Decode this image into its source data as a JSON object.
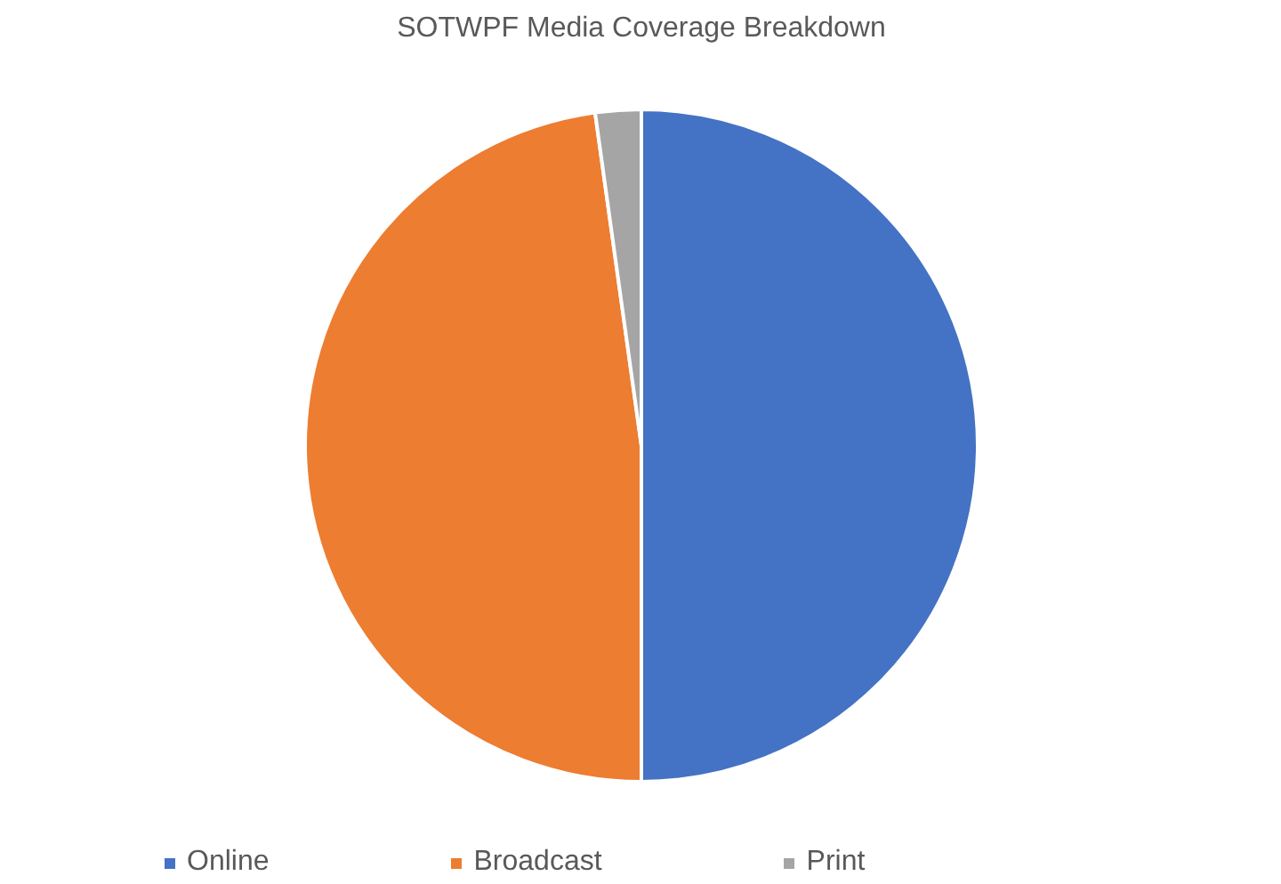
{
  "chart_data": {
    "type": "pie",
    "title": "SOTWPF Media Coverage Breakdown",
    "categories": [
      "Online",
      "Broadcast",
      "Print"
    ],
    "values": [
      50,
      47.8,
      2.2
    ],
    "colors": [
      "#4472c4",
      "#ed7d31",
      "#a5a5a5"
    ],
    "legend": "bottom"
  }
}
